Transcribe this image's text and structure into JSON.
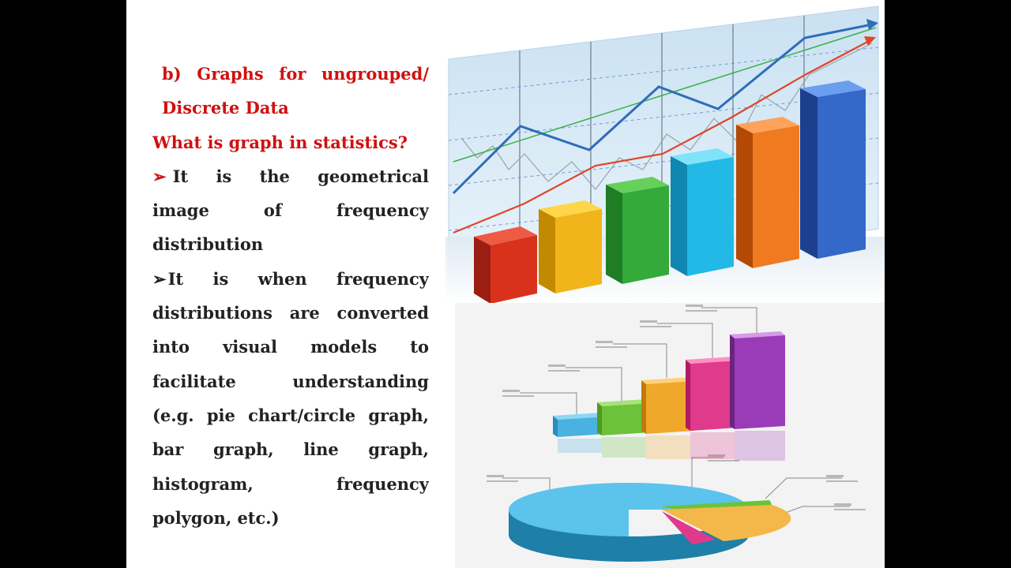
{
  "slide": {
    "heading_line1": "b) Graphs for ungrouped/",
    "heading_line2": "Discrete Data",
    "question": "What is graph in statistics?",
    "bullet1": {
      "glyph": "➢",
      "lines": [
        "It is the geometrical",
        "image of frequency",
        "distribution"
      ]
    },
    "bullet2": {
      "glyph": "➢",
      "lines": [
        "It is when frequency",
        "distributions are converted",
        "into visual models to",
        "facilitate understanding",
        "(e.g. pie chart/circle graph,",
        "bar graph, line graph,",
        "histogram, frequency",
        "polygon, etc.)"
      ]
    }
  },
  "colors": {
    "heading_red": "#d01010",
    "body_text": "#222222",
    "letterbox": "#000000"
  }
}
